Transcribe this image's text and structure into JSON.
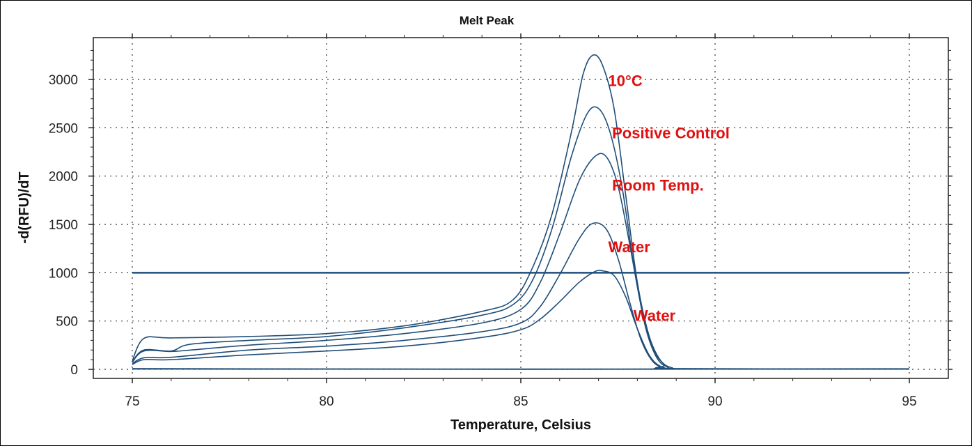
{
  "chart_data": {
    "type": "line",
    "title": "Melt Peak",
    "xlabel": "Temperature, Celsius",
    "ylabel": "-d(RFU)/dT",
    "xlim": [
      75,
      95
    ],
    "ylim": [
      0,
      3300
    ],
    "x_ticks": [
      75,
      80,
      85,
      90,
      95
    ],
    "y_ticks": [
      0,
      500,
      1000,
      1500,
      2000,
      2500,
      3000
    ],
    "grid": "dotted",
    "line_color": "#1f4e79",
    "annotation_color": "#e01010",
    "threshold": 1000,
    "annotations": [
      {
        "text": "10°C",
        "x": 87.25,
        "y": 2930
      },
      {
        "text": "Positive Control",
        "x": 87.35,
        "y": 2390
      },
      {
        "text": "Room Temp.",
        "x": 87.35,
        "y": 1850
      },
      {
        "text": "Water",
        "x": 87.25,
        "y": 1210
      },
      {
        "text": "Water",
        "x": 87.9,
        "y": 500
      }
    ],
    "series": [
      {
        "x": [
          75.0,
          75.3,
          76.0,
          78.0,
          80.0,
          82.0,
          84.0,
          84.8,
          85.3,
          85.8,
          86.3,
          86.6,
          86.85,
          87.1,
          87.4,
          87.7,
          88.0,
          88.3,
          88.6,
          88.9,
          89.2,
          95.0
        ],
        "y": [
          90,
          320,
          325,
          340,
          370,
          450,
          600,
          720,
          1050,
          1600,
          2450,
          3050,
          3250,
          3150,
          2700,
          1800,
          900,
          350,
          90,
          15,
          5,
          5
        ]
      },
      {
        "x": [
          75.0,
          75.3,
          76.0,
          76.5,
          78.0,
          80.0,
          82.0,
          84.0,
          84.8,
          85.3,
          85.8,
          86.3,
          86.7,
          87.0,
          87.3,
          87.6,
          87.9,
          88.2,
          88.5,
          88.8,
          89.1,
          95.0
        ],
        "y": [
          80,
          200,
          190,
          260,
          300,
          340,
          430,
          560,
          670,
          920,
          1450,
          2200,
          2640,
          2700,
          2450,
          1900,
          1100,
          450,
          120,
          20,
          5,
          5
        ]
      },
      {
        "x": [
          75.0,
          75.3,
          76.0,
          76.5,
          78.0,
          80.0,
          82.0,
          84.0,
          85.0,
          85.5,
          86.0,
          86.5,
          86.9,
          87.2,
          87.5,
          87.8,
          88.1,
          88.4,
          88.7,
          89.0,
          95.0
        ],
        "y": [
          75,
          190,
          185,
          200,
          250,
          300,
          370,
          480,
          620,
          900,
          1400,
          1950,
          2200,
          2200,
          1900,
          1300,
          650,
          220,
          50,
          8,
          5
        ]
      },
      {
        "x": [
          75.0,
          75.3,
          76.0,
          78.0,
          80.0,
          82.0,
          84.0,
          85.0,
          85.5,
          86.0,
          86.5,
          86.85,
          87.2,
          87.5,
          87.8,
          88.1,
          88.4,
          88.7,
          89.0,
          95.0
        ],
        "y": [
          60,
          120,
          125,
          200,
          240,
          300,
          390,
          480,
          650,
          980,
          1350,
          1510,
          1450,
          1150,
          700,
          300,
          80,
          15,
          5,
          5
        ]
      },
      {
        "x": [
          75.0,
          75.3,
          76.0,
          78.0,
          80.0,
          82.0,
          84.0,
          85.0,
          85.5,
          86.0,
          86.5,
          86.9,
          87.1,
          87.4,
          87.7,
          88.0,
          88.3,
          88.6,
          89.0,
          95.0
        ],
        "y": [
          50,
          100,
          100,
          150,
          190,
          240,
          330,
          410,
          520,
          700,
          900,
          1010,
          1020,
          970,
          750,
          420,
          150,
          30,
          5,
          5
        ]
      },
      {
        "x": [
          75.0,
          80.0,
          85.0,
          90.0,
          95.0
        ],
        "y": [
          8,
          4,
          3,
          4,
          6
        ]
      },
      {
        "x": [
          75.0,
          80.0,
          85.0,
          90.0,
          95.0
        ],
        "y": [
          3,
          2,
          1,
          2,
          2
        ]
      }
    ]
  }
}
